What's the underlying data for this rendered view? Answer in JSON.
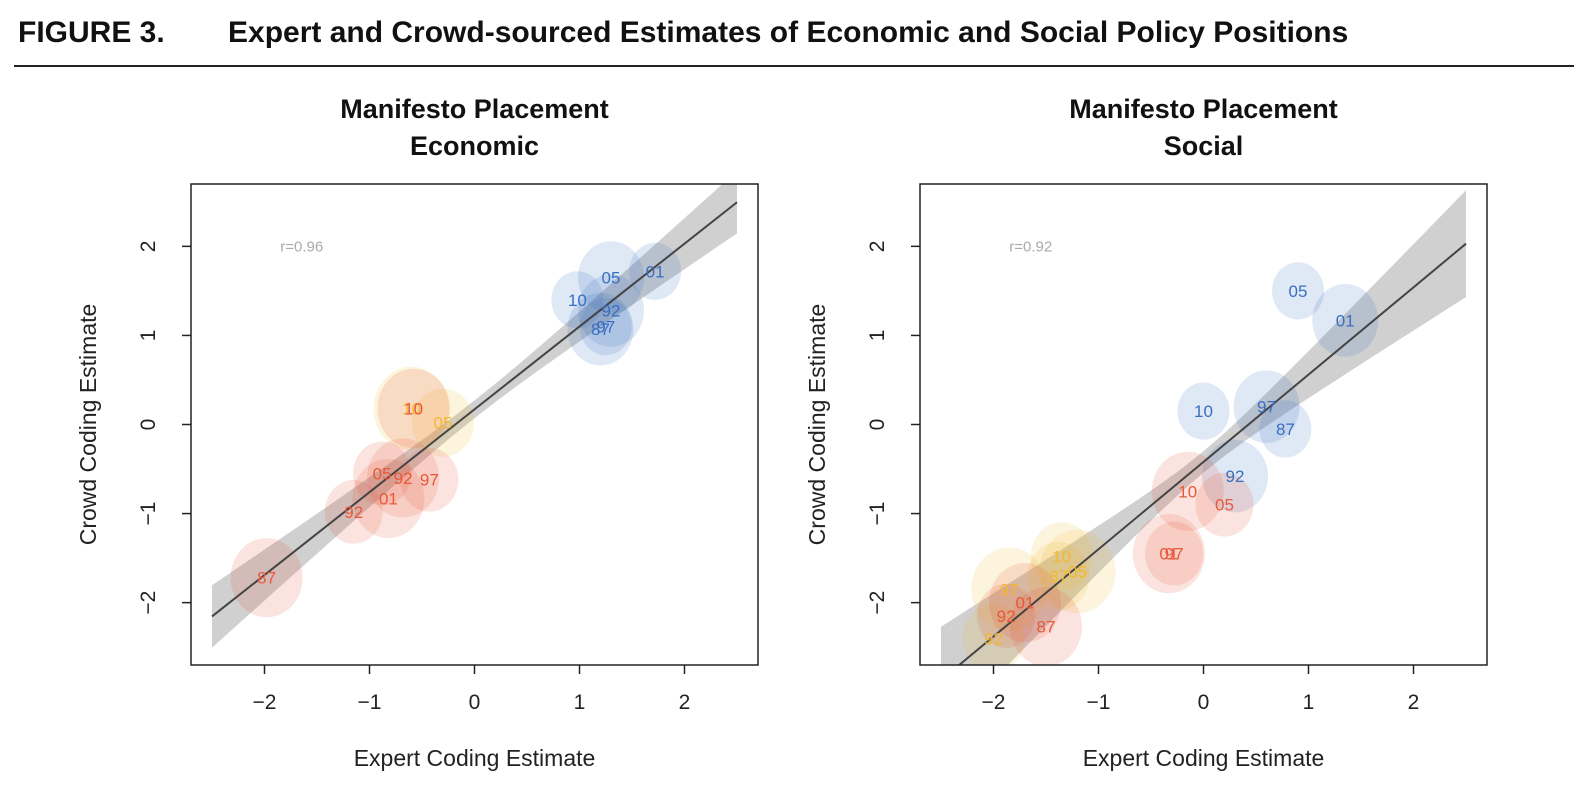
{
  "figure": {
    "label": "FIGURE 3.",
    "title": "Expert and Crowd-sourced Estimates of Economic and Social Policy Positions"
  },
  "chart_data": [
    {
      "type": "scatter",
      "title": "Manifesto Placement\nEconomic",
      "title_lines": [
        "Manifesto Placement",
        "Economic"
      ],
      "xlabel": "Expert Coding Estimate",
      "ylabel": "Crowd Coding Estimate",
      "xlim": [
        -2.7,
        2.7
      ],
      "ylim": [
        -2.7,
        2.7
      ],
      "xticks": [
        -2,
        -1,
        0,
        1,
        2
      ],
      "yticks": [
        -2,
        -1,
        0,
        1,
        2
      ],
      "annotation": "r=0.96",
      "annotation_pos": {
        "x": -1.85,
        "y": 2.0
      },
      "fit": {
        "intercept": 0.17,
        "slope": 0.93,
        "x_range": [
          -2.5,
          2.5
        ],
        "band_half_width_at_center": 0.1,
        "band_half_width_at_ends": 0.35
      },
      "series": [
        {
          "color": "#3a6fc0",
          "points": [
            {
              "label": "01",
              "x": 1.72,
              "y": 1.72
            },
            {
              "label": "05",
              "x": 1.3,
              "y": 1.65
            },
            {
              "label": "10",
              "x": 0.98,
              "y": 1.4
            },
            {
              "label": "92",
              "x": 1.3,
              "y": 1.28
            },
            {
              "label": "97",
              "x": 1.25,
              "y": 1.1
            },
            {
              "label": "87",
              "x": 1.2,
              "y": 1.07
            }
          ]
        },
        {
          "color": "#f2b830",
          "points": [
            {
              "label": "05",
              "x": -0.3,
              "y": 0.02
            },
            {
              "label": "10",
              "x": -0.6,
              "y": 0.18
            }
          ]
        },
        {
          "color": "#e8583a",
          "points": [
            {
              "label": "10",
              "x": -0.58,
              "y": 0.18
            },
            {
              "label": "05",
              "x": -0.88,
              "y": -0.55
            },
            {
              "label": "92",
              "x": -0.68,
              "y": -0.6
            },
            {
              "label": "97",
              "x": -0.43,
              "y": -0.62
            },
            {
              "label": "01",
              "x": -0.82,
              "y": -0.83
            },
            {
              "label": "92",
              "x": -1.15,
              "y": -0.98
            },
            {
              "label": "87",
              "x": -1.98,
              "y": -1.72
            }
          ]
        }
      ]
    },
    {
      "type": "scatter",
      "title": "Manifesto Placement\nSocial",
      "title_lines": [
        "Manifesto Placement",
        "Social"
      ],
      "xlabel": "Expert Coding Estimate",
      "ylabel": "Crowd Coding Estimate",
      "xlim": [
        -2.7,
        2.7
      ],
      "ylim": [
        -2.7,
        2.7
      ],
      "xticks": [
        -2,
        -1,
        0,
        1,
        2
      ],
      "yticks": [
        -2,
        -1,
        0,
        1,
        2
      ],
      "annotation": "r=0.92",
      "annotation_pos": {
        "x": -1.85,
        "y": 2.0
      },
      "fit": {
        "intercept": -0.42,
        "slope": 0.98,
        "x_range": [
          -2.5,
          2.5
        ],
        "band_half_width_at_center": 0.12,
        "band_half_width_at_ends": 0.6
      },
      "series": [
        {
          "color": "#3a6fc0",
          "points": [
            {
              "label": "05",
              "x": 0.9,
              "y": 1.5
            },
            {
              "label": "01",
              "x": 1.35,
              "y": 1.17
            },
            {
              "label": "10",
              "x": 0.0,
              "y": 0.15
            },
            {
              "label": "97",
              "x": 0.6,
              "y": 0.2
            },
            {
              "label": "87",
              "x": 0.78,
              "y": -0.05
            },
            {
              "label": "92",
              "x": 0.3,
              "y": -0.58
            }
          ]
        },
        {
          "color": "#f2b830",
          "points": [
            {
              "label": "10",
              "x": -1.35,
              "y": -1.48
            },
            {
              "label": "05",
              "x": -1.2,
              "y": -1.65
            },
            {
              "label": "87",
              "x": -1.38,
              "y": -1.7
            },
            {
              "label": "97",
              "x": -1.85,
              "y": -1.85
            },
            {
              "label": "92",
              "x": -2.0,
              "y": -2.4
            }
          ]
        },
        {
          "color": "#e8583a",
          "points": [
            {
              "label": "10",
              "x": -0.15,
              "y": -0.75
            },
            {
              "label": "05",
              "x": 0.2,
              "y": -0.9
            },
            {
              "label": "01",
              "x": -0.33,
              "y": -1.45
            },
            {
              "label": "97",
              "x": -0.28,
              "y": -1.45
            },
            {
              "label": "01",
              "x": -1.7,
              "y": -2.0
            },
            {
              "label": "92",
              "x": -1.88,
              "y": -2.15
            },
            {
              "label": "87",
              "x": -1.5,
              "y": -2.27
            }
          ]
        }
      ]
    }
  ]
}
